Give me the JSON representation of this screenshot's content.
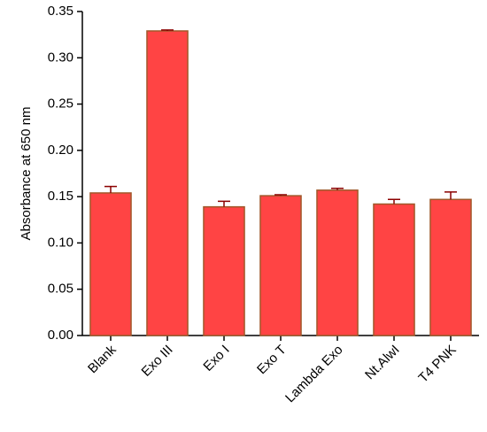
{
  "chart_data": {
    "type": "bar",
    "y_label": "Absorbance at 650 nm",
    "categories": [
      "Blank",
      "Exo III",
      "Exo I",
      "Exo T",
      "Lambda Exo",
      "Nt.AlwI",
      "T4 PNK"
    ],
    "values": [
      0.154,
      0.329,
      0.139,
      0.151,
      0.157,
      0.142,
      0.147
    ],
    "errors": [
      0.007,
      0.001,
      0.006,
      0.001,
      0.002,
      0.005,
      0.008
    ],
    "color": "#ff4444",
    "edge_color": "#a0582a",
    "error_color": "#8b0000",
    "ylim": [
      0,
      0.35
    ],
    "yticks": [
      {
        "value": 0,
        "label": "0.00"
      },
      0.05,
      {
        "value": 0.1,
        "label": "0.10"
      },
      0.15,
      {
        "value": 0.2,
        "label": "0.20"
      },
      0.25,
      {
        "value": 0.3,
        "label": "0.30"
      },
      0.35
    ]
  }
}
